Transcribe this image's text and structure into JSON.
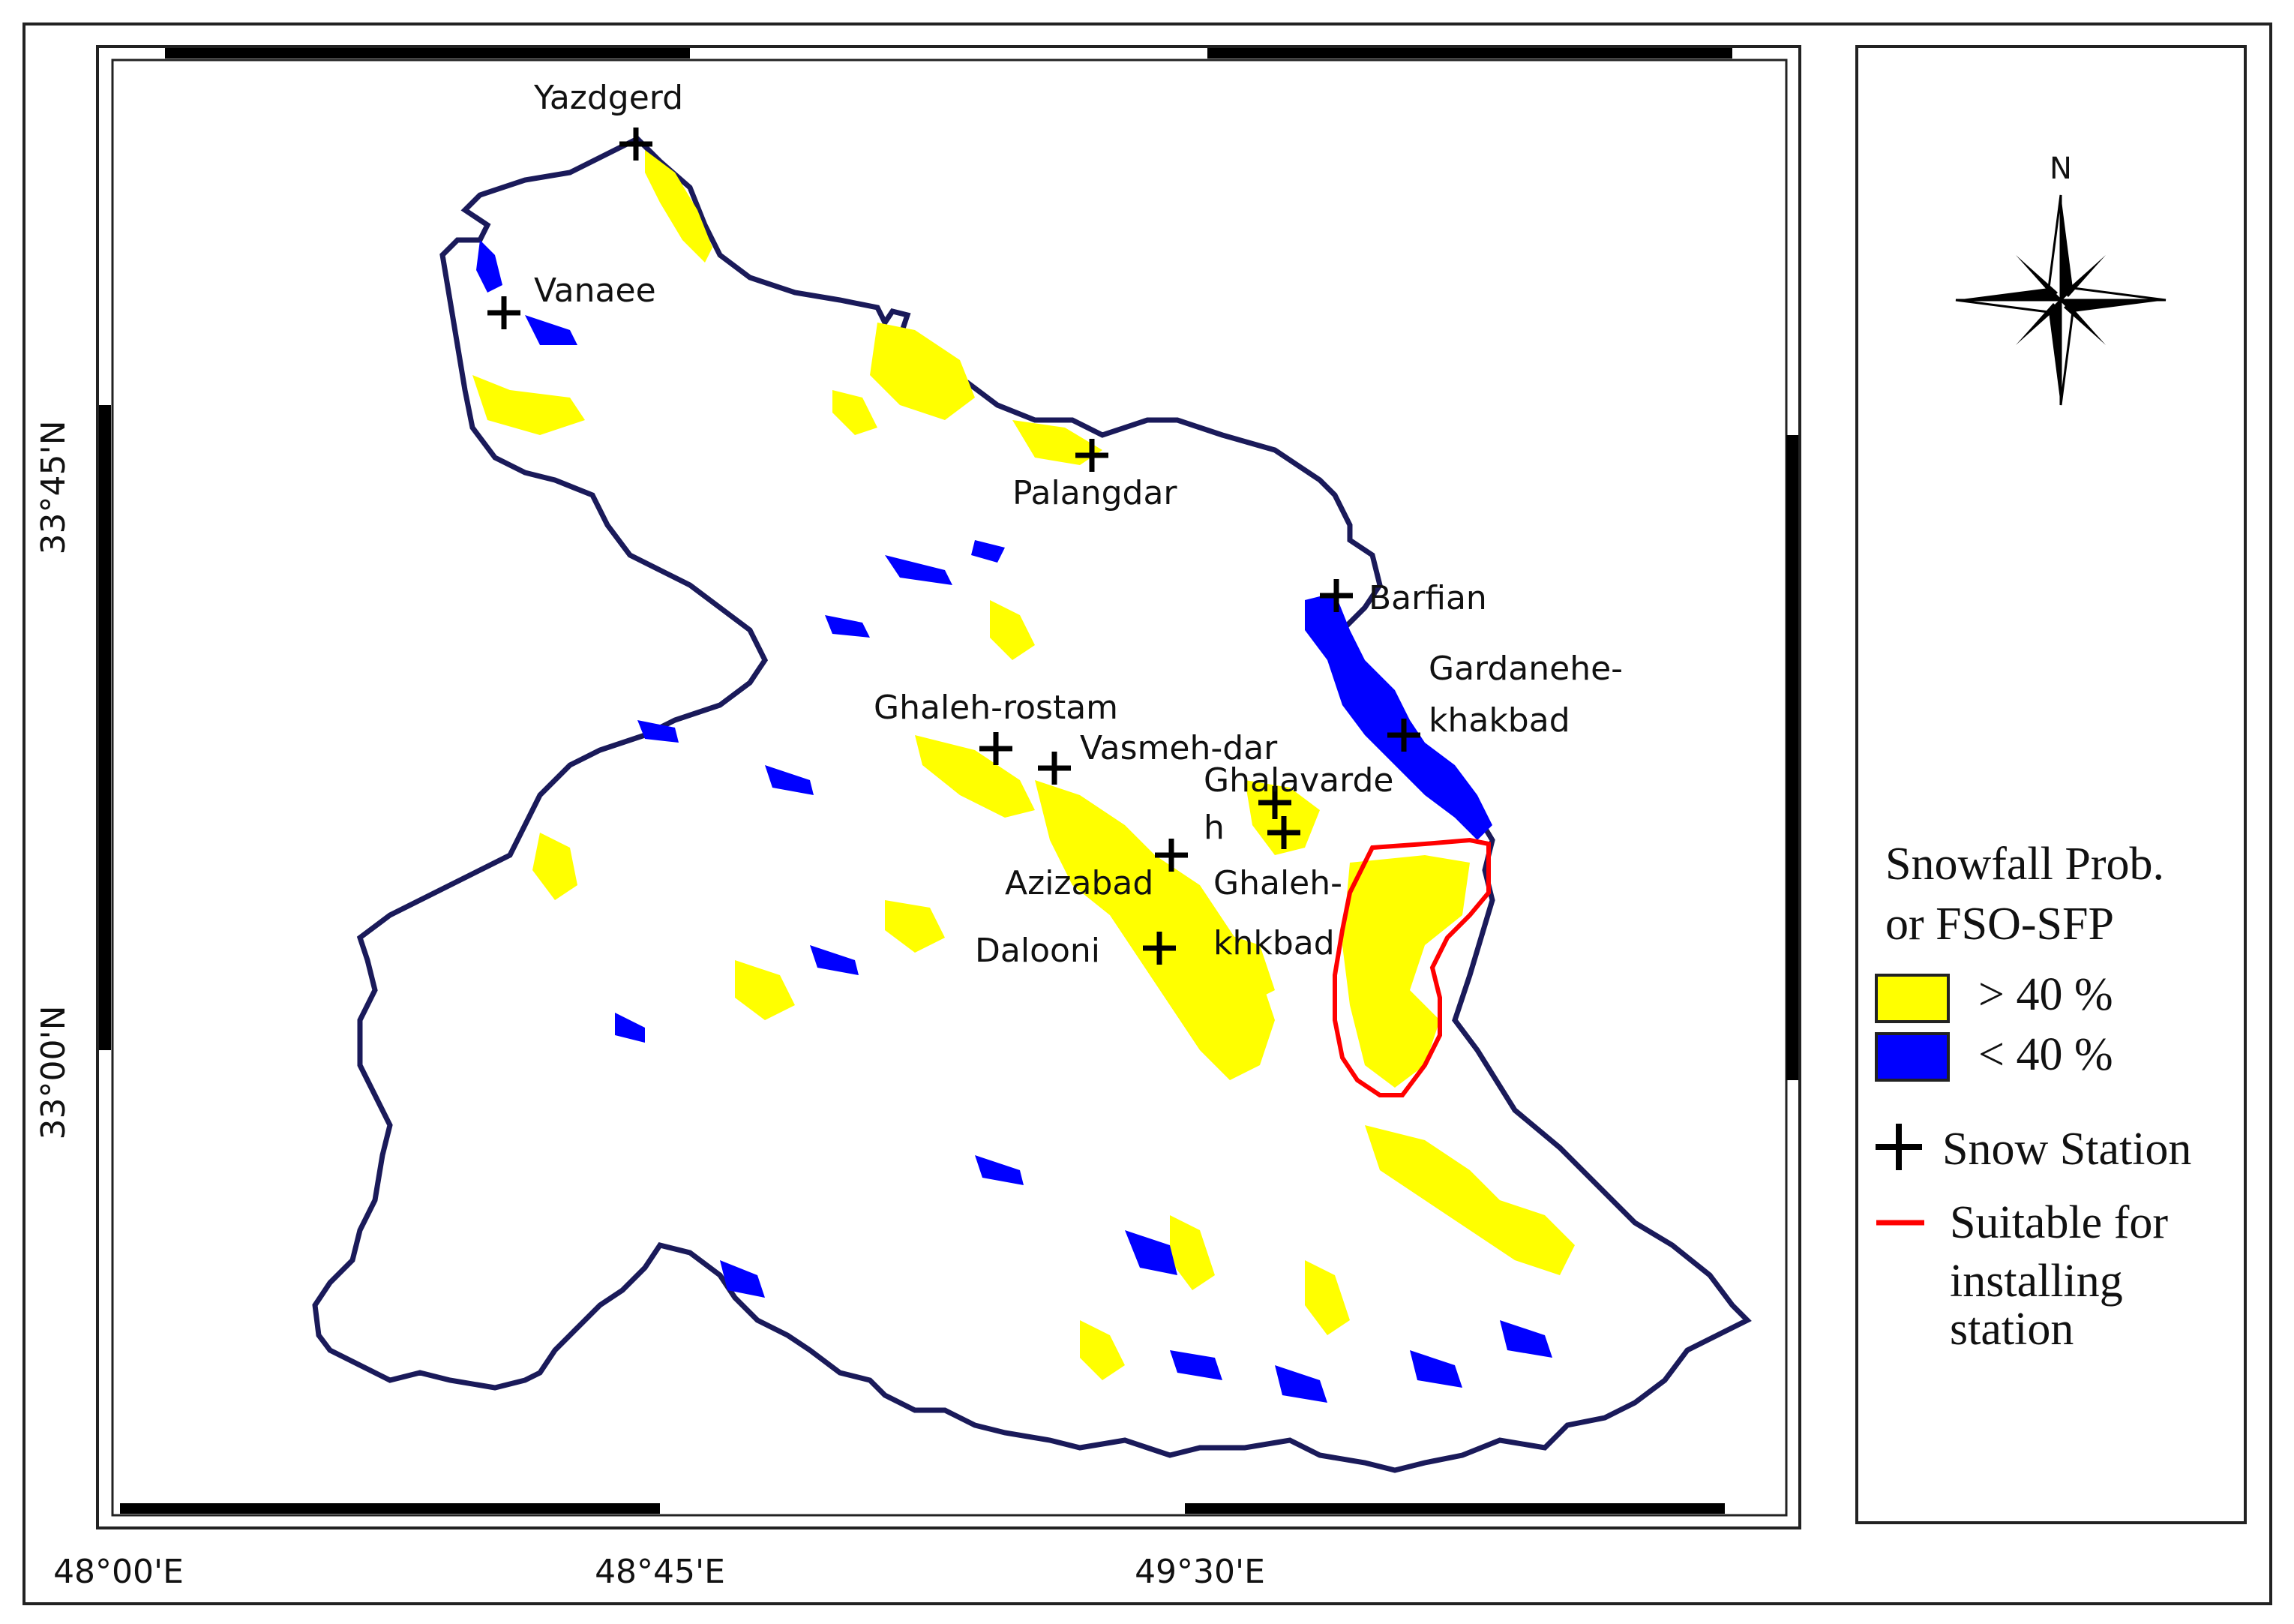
{
  "map": {
    "lat_labels": [
      "33°45'N",
      "33°00'N"
    ],
    "lon_labels": [
      "48°00'E",
      "48°45'E",
      "49°30'E"
    ],
    "north_label": "N",
    "stations": [
      {
        "name": "Yazdgerd"
      },
      {
        "name": "Vanaee"
      },
      {
        "name": "Palangdar"
      },
      {
        "name": "Barfian"
      },
      {
        "name": "Gardanehe-",
        "name2": "khakbad"
      },
      {
        "name": "Ghaleh-rostam"
      },
      {
        "name": "Vasmeh-dar"
      },
      {
        "name": "Ghalavarde",
        "name2": "h"
      },
      {
        "name": "Azizabad"
      },
      {
        "name": "Ghaleh-",
        "name2": "khkbad"
      },
      {
        "name": "Dalooni"
      }
    ],
    "colors": {
      "high": "#ffff00",
      "low": "#0000ff",
      "outline": "#1a1a5a",
      "suitable": "#ff0000"
    }
  },
  "legend": {
    "title_line1": "Snowfall Prob.",
    "title_line2": "or FSO-SFP",
    "high_label": "> 40 %",
    "low_label": "< 40 %",
    "station_label": "Snow Station",
    "suitable_line1": "Suitable for",
    "suitable_line2": "installing",
    "suitable_line3": "station"
  }
}
